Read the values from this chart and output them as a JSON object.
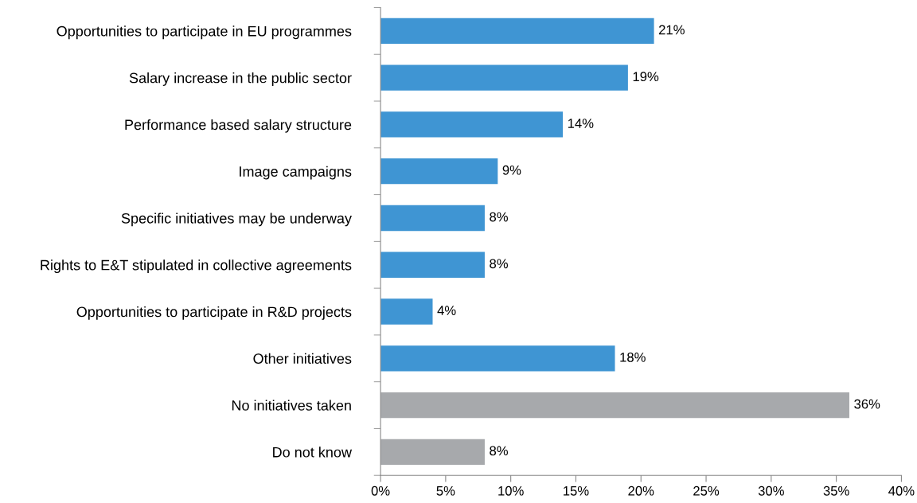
{
  "chart_data": {
    "type": "bar",
    "orientation": "horizontal",
    "categories": [
      "Opportunities to participate in EU programmes",
      "Salary increase in the public sector",
      "Performance based salary structure",
      "Image campaigns",
      "Specific initiatives may be underway",
      "Rights to E&T stipulated in collective agreements",
      "Opportunities to participate in R&D projects",
      "Other initiatives",
      "No initiatives taken",
      "Do not know"
    ],
    "values": [
      21,
      19,
      14,
      9,
      8,
      8,
      4,
      18,
      36,
      8
    ],
    "colors": [
      "#3f95d3",
      "#3f95d3",
      "#3f95d3",
      "#3f95d3",
      "#3f95d3",
      "#3f95d3",
      "#3f95d3",
      "#3f95d3",
      "#a7a9ac",
      "#a7a9ac"
    ],
    "value_labels": [
      "21%",
      "19%",
      "14%",
      "9%",
      "8%",
      "8%",
      "4%",
      "18%",
      "36%",
      "8%"
    ],
    "xlim": [
      0,
      40
    ],
    "xticks": [
      {
        "value": 0,
        "label": "0%"
      },
      {
        "value": 5,
        "label": "5%"
      },
      {
        "value": 10,
        "label": "10%"
      },
      {
        "value": 15,
        "label": "15%"
      },
      {
        "value": 20,
        "label": "20%"
      },
      {
        "value": 25,
        "label": "25%"
      },
      {
        "value": 30,
        "label": "30%"
      },
      {
        "value": 35,
        "label": "35%"
      },
      {
        "value": 40,
        "label": "40%"
      }
    ],
    "grid": false,
    "legend": false
  }
}
